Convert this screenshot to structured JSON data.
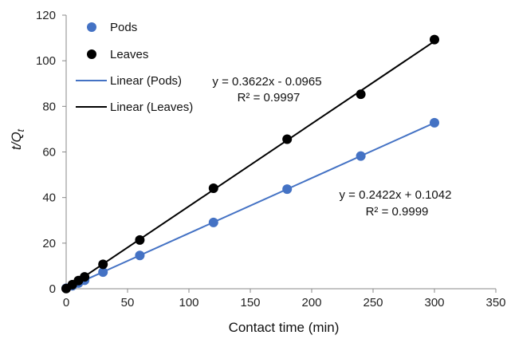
{
  "chart_data": {
    "type": "scatter",
    "xlabel": "Contact time (min)",
    "ylabel": "t/Q",
    "ylabel_subscript": "t",
    "xlim": [
      0,
      350
    ],
    "ylim": [
      0,
      120
    ],
    "xticks": [
      "0",
      "50",
      "100",
      "150",
      "200",
      "250",
      "300",
      "350"
    ],
    "yticks": [
      "0",
      "20",
      "40",
      "60",
      "80",
      "100",
      "120"
    ],
    "grid": false,
    "legend_position": "top-left",
    "series": [
      {
        "name": "Pods",
        "color": "#4472c4",
        "x": [
          0,
          5,
          10,
          15,
          30,
          60,
          120,
          180,
          240,
          300
        ],
        "y": [
          0.2,
          1.3,
          2.5,
          3.7,
          7.3,
          14.6,
          29.1,
          43.7,
          58.2,
          72.8
        ]
      },
      {
        "name": "Leaves",
        "color": "#000000",
        "x": [
          0,
          5,
          10,
          15,
          30,
          60,
          120,
          180,
          240,
          300
        ],
        "y": [
          0.1,
          1.8,
          3.6,
          5.2,
          10.7,
          21.4,
          44.1,
          65.6,
          85.3,
          109.3
        ]
      }
    ],
    "trendlines": [
      {
        "name": "Linear (Pods)",
        "color": "#4472c4",
        "slope": 0.2422,
        "intercept": 0.1042,
        "x_range": [
          0,
          300
        ],
        "equation": "y = 0.2422x + 0.1042",
        "r2": "R² = 0.9999"
      },
      {
        "name": "Linear (Leaves)",
        "color": "#000000",
        "slope": 0.3622,
        "intercept": -0.0965,
        "x_range": [
          0,
          300
        ],
        "equation": "y = 0.3622x - 0.0965",
        "r2": "R² = 0.9997"
      }
    ]
  }
}
